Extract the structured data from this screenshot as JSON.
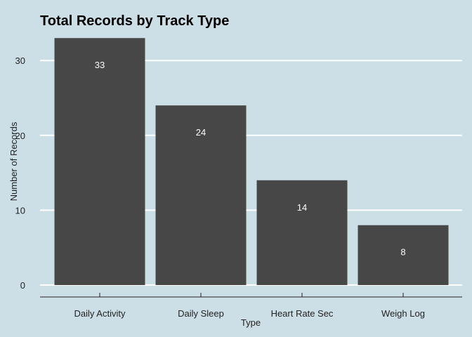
{
  "chart_data": {
    "type": "bar",
    "title": "Total Records by Track Type",
    "xlabel": "Type",
    "ylabel": "Number of Records",
    "categories": [
      "Daily Activity",
      "Daily Sleep",
      "Heart Rate Sec",
      "Weigh Log"
    ],
    "values": [
      33,
      24,
      14,
      8
    ],
    "data_labels": [
      "33",
      "24",
      "14",
      "8"
    ],
    "y_ticks": [
      0,
      10,
      20,
      30
    ],
    "ylim": [
      0,
      33
    ],
    "grid": "horizontal",
    "legend": "none",
    "colors": {
      "background": "#cddfe6",
      "bar": "#474747",
      "gridline": "#ffffff",
      "data_label": "#ffffff",
      "text": "#222222"
    }
  }
}
